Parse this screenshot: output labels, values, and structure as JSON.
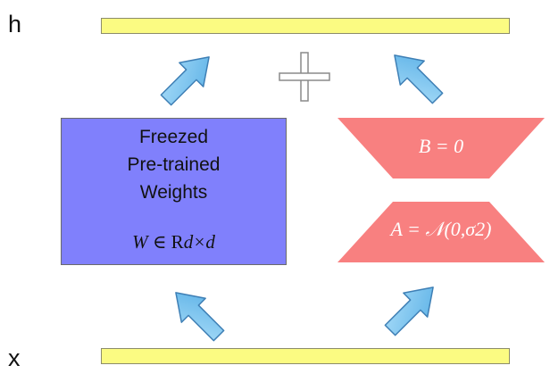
{
  "labels": {
    "top": "h",
    "bottom": "x"
  },
  "frozen_block": {
    "lines": [
      "Freezed",
      "Pre-trained",
      "Weights"
    ],
    "formula_var": "W",
    "formula_rel": " ∈ R",
    "formula_dims": "d×d"
  },
  "lora": {
    "b_label": "B = 0",
    "a_label": "A = 𝒩(0,σ2)"
  },
  "operator": {
    "symbol": "plus"
  },
  "colors": {
    "io_bar": "#fbfb82",
    "frozen_block": "#8080fc",
    "lora_block": "#f88080",
    "arrow": "#7cc4f0"
  }
}
